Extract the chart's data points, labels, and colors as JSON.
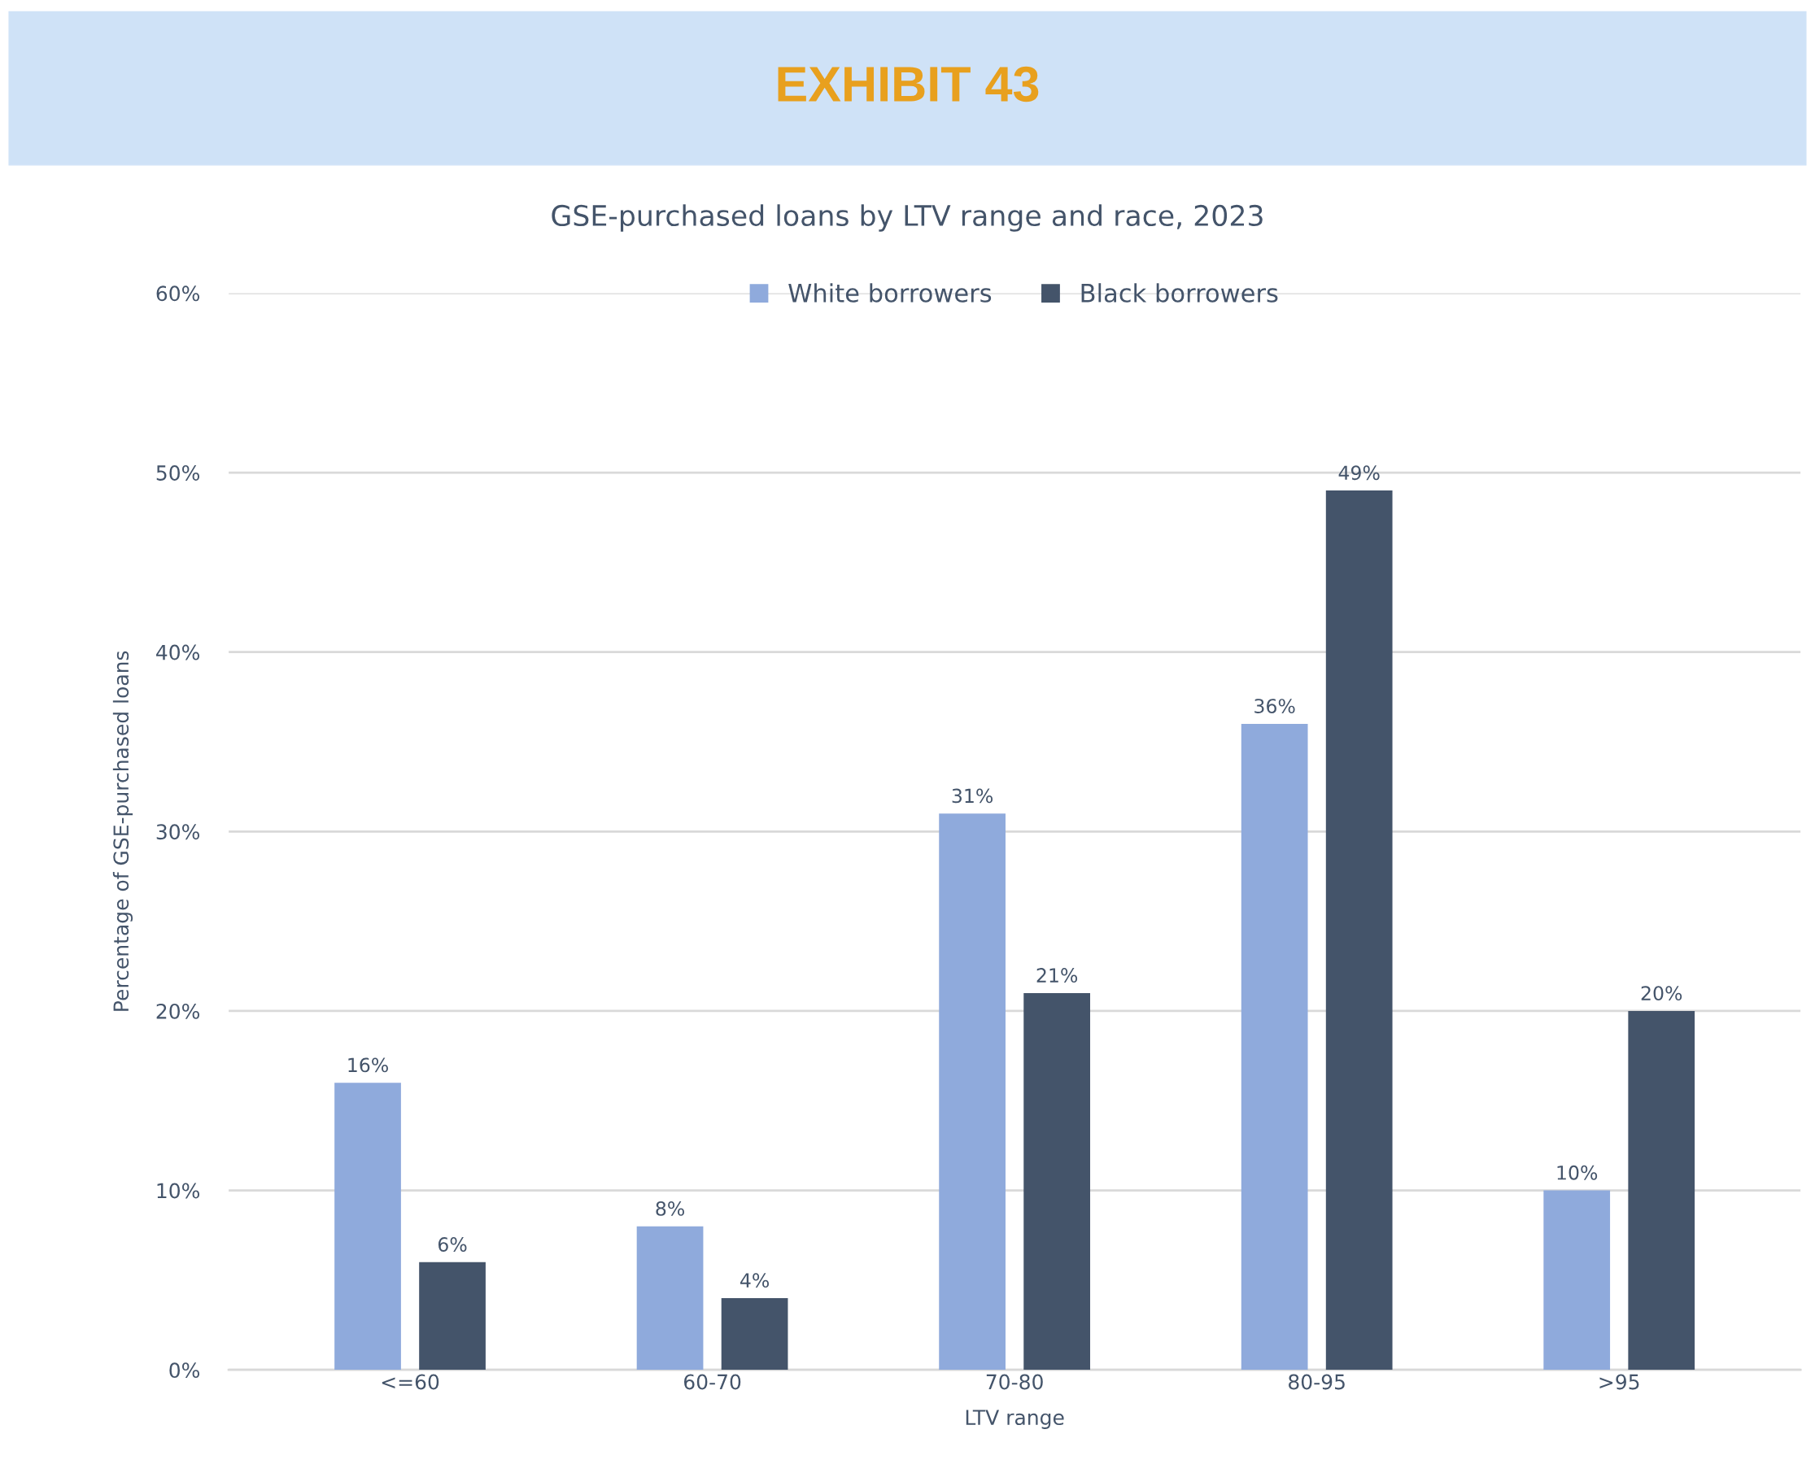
{
  "chart_data": {
    "type": "bar",
    "title": "EXHIBIT 43",
    "subtitle": "GSE-purchased loans by LTV range and race, 2023",
    "xlabel": "LTV range",
    "ylabel": "Percentage of GSE-purchased loans",
    "categories": [
      "<=60",
      "60-70",
      "70-80",
      "80-95",
      ">95"
    ],
    "series": [
      {
        "name": "White borrowers",
        "color": "#8faadc",
        "values": [
          16,
          8,
          31,
          36,
          10
        ],
        "value_labels": [
          "16%",
          "8%",
          "31%",
          "36%",
          "10%"
        ]
      },
      {
        "name": "Black borrowers",
        "color": "#44546a",
        "values": [
          6,
          4,
          21,
          49,
          20
        ],
        "value_labels": [
          "6%",
          "4%",
          "21%",
          "49%",
          "20%"
        ]
      }
    ],
    "ylim": [
      0,
      60
    ],
    "yticks": [
      {
        "value": 0,
        "label": "0%"
      },
      {
        "value": 10,
        "label": "10%"
      },
      {
        "value": 20,
        "label": "20%"
      },
      {
        "value": 30,
        "label": "30%"
      },
      {
        "value": 40,
        "label": "40%"
      },
      {
        "value": 50,
        "label": "50%"
      },
      {
        "value": 60,
        "label": "60%"
      }
    ],
    "grid": "y",
    "legend": "top"
  }
}
